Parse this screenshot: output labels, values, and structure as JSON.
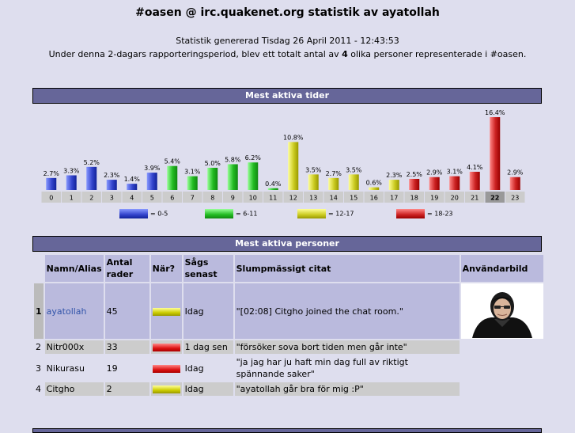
{
  "page": {
    "title": "#oasen @ irc.quakenet.org statistik av ayatollah",
    "generated": "Statistik genererad Tisdag 26 April 2011 - 12:43:53",
    "summary_prefix": "Under denna 2-dagars rapporteringsperiod, blev ett totalt antal av ",
    "summary_count": "4",
    "summary_suffix": " olika personer representerade i #oasen."
  },
  "active_times": {
    "header": "Mest aktiva tider",
    "legend": [
      {
        "label": "= 0-5",
        "color": "blue"
      },
      {
        "label": "= 6-11",
        "color": "green"
      },
      {
        "label": "= 12-17",
        "color": "yellow"
      },
      {
        "label": "= 18-23",
        "color": "red"
      }
    ],
    "current_hour": "22"
  },
  "chart_data": {
    "type": "bar",
    "categories": [
      "0",
      "1",
      "2",
      "3",
      "4",
      "5",
      "6",
      "7",
      "8",
      "9",
      "10",
      "11",
      "12",
      "13",
      "14",
      "15",
      "16",
      "17",
      "18",
      "19",
      "20",
      "21",
      "22",
      "23"
    ],
    "values": [
      2.7,
      3.3,
      5.2,
      2.3,
      1.4,
      3.9,
      5.4,
      3.1,
      5.0,
      5.8,
      6.2,
      0.4,
      10.8,
      3.5,
      2.7,
      3.5,
      0.6,
      2.3,
      2.5,
      2.9,
      3.1,
      4.1,
      16.4,
      2.9
    ],
    "value_labels": [
      "2.7%",
      "3.3%",
      "5.2%",
      "2.3%",
      "1.4%",
      "3.9%",
      "5.4%",
      "3.1%",
      "5.0%",
      "5.8%",
      "6.2%",
      "0.4%",
      "10.8%",
      "3.5%",
      "2.7%",
      "3.5%",
      "0.6%",
      "2.3%",
      "2.5%",
      "2.9%",
      "3.1%",
      "4.1%",
      "16.4%",
      "2.9%"
    ],
    "series_colors": {
      "blue": "#3344cc",
      "green": "#22bb22",
      "yellow": "#cccc22",
      "red": "#cc2222"
    },
    "grid": false
  },
  "active_people": {
    "header": "Mest aktiva personer",
    "columns": [
      "Namn/Alias",
      "Antal rader",
      "När?",
      "Sågs senast",
      "Slumpmässigt citat",
      "Användarbild"
    ],
    "rows": [
      {
        "rank": "1",
        "nick": "ayatollah",
        "lines": "45",
        "when": "yellow",
        "last_seen": "Idag",
        "quote": "\"[02:08] Citgho joined the chat room.\""
      },
      {
        "rank": "2",
        "nick": "Nitr000x",
        "lines": "33",
        "when": "red",
        "last_seen": "1 dag sen",
        "quote": "\"försöker sova bort tiden men går inte\""
      },
      {
        "rank": "3",
        "nick": "Nikurasu",
        "lines": "19",
        "when": "red",
        "last_seen": "Idag",
        "quote": "\"ja jag har ju haft min dag full av riktigt spännande saker\""
      },
      {
        "rank": "4",
        "nick": "Citgho",
        "lines": "2",
        "when": "yellow",
        "last_seen": "Idag",
        "quote": "\"ayatollah går bra för mig :P\""
      }
    ]
  }
}
